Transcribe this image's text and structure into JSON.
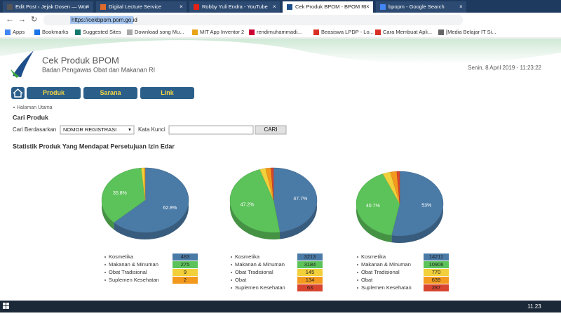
{
  "browser": {
    "tabs": [
      "Edit Post ‹ Jejak Dosen — Wor",
      "Digital Lecture Service",
      "Robby Yuli Endra - YouTube",
      "Cek Produk BPOM - BPOM RI",
      "bpopm - Google Search"
    ],
    "url": "https://cekbpom.pom.go.id",
    "bookmarks": [
      "Apps",
      "Bookmarks",
      "Suggested Sites",
      "Download song Mu...",
      "MIT App Inventor 2",
      "rendimuhammadi...",
      "Beasiswa LPDP - Lo...",
      "Cara Membuat Apli...",
      "[Media Belajar IT Si..."
    ]
  },
  "header": {
    "title": "Cek Produk BPOM",
    "subtitle": "Badan Pengawas Obat dan Makanan RI",
    "datetime": "Senin, 8 April 2019 - 11:23:22"
  },
  "nav": [
    "Produk",
    "Sarana",
    "Link"
  ],
  "breadcrumb": "Halaman Utama",
  "search": {
    "heading": "Cari Produk",
    "by_label": "Cari Berdasarkan",
    "by_value": "NOMOR REGISTRASI",
    "keyword_label": "Kata Kunci",
    "button": "CARI"
  },
  "stats_title": "Statistik Produk Yang Mendapat Persetujuan Izin Edar",
  "chart_data": [
    {
      "type": "pie",
      "categories": [
        "Kosmetika",
        "Makanan & Minuman",
        "Obat Tradisional",
        "Suplemen Kesehatan"
      ],
      "values": [
        483,
        275,
        9,
        2
      ],
      "colors": [
        "#4a7aa6",
        "#5cc25a",
        "#f2d03b",
        "#f39a1e"
      ],
      "percent_labels": [
        "62.8%",
        "35.8%",
        null,
        null
      ]
    },
    {
      "type": "pie",
      "categories": [
        "Kosmetika",
        "Makanan & Minuman",
        "Obat Tradisional",
        "Obat",
        "Suplemen Kesehatan"
      ],
      "values": [
        3213,
        3184,
        145,
        134,
        63
      ],
      "colors": [
        "#4a7aa6",
        "#5cc25a",
        "#f2d03b",
        "#f39a1e",
        "#d8452e"
      ],
      "percent_labels": [
        "47.7%",
        "47.2%",
        null,
        null,
        null
      ]
    },
    {
      "type": "pie",
      "categories": [
        "Kosmetika",
        "Makanan & Minuman",
        "Obat Tradisional",
        "Obat",
        "Suplemen Kesehatan"
      ],
      "values": [
        14211,
        10906,
        770,
        639,
        287
      ],
      "colors": [
        "#4a7aa6",
        "#5cc25a",
        "#f2d03b",
        "#f39a1e",
        "#d8452e"
      ],
      "percent_labels": [
        "53%",
        "40.7%",
        null,
        null,
        null
      ]
    }
  ],
  "taskbar": {
    "time": "11.23"
  }
}
